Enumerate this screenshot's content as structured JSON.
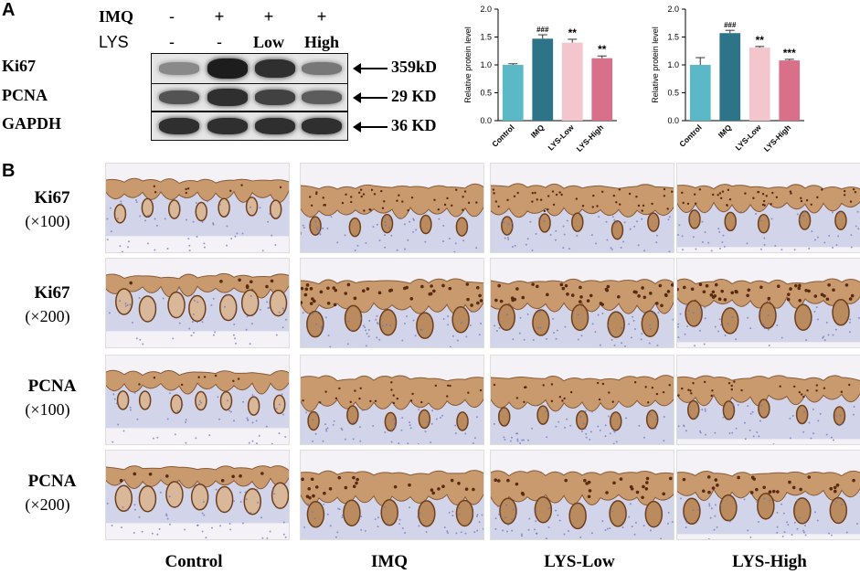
{
  "panel_a": {
    "letter": "A",
    "wb_header": {
      "rows": [
        {
          "label": "IMQ",
          "cols": [
            "-",
            "+",
            "+",
            "+"
          ]
        },
        {
          "label": "LYS",
          "cols": [
            "-",
            "-",
            "Low",
            "High"
          ]
        }
      ]
    },
    "blots": [
      {
        "label": "Ki67",
        "mw": "359kD",
        "intensity": [
          0.35,
          0.95,
          0.85,
          0.45
        ]
      },
      {
        "label": "PCNA",
        "mw": "29 KD",
        "intensity": [
          0.65,
          0.85,
          0.75,
          0.6
        ]
      },
      {
        "label": "GAPDH",
        "mw": "36 KD",
        "intensity": [
          0.85,
          0.85,
          0.85,
          0.85
        ]
      }
    ]
  },
  "chart_data": [
    {
      "type": "bar",
      "ylabel": "Relative protein level",
      "categories": [
        "Control",
        "IMQ",
        "LYS-Low",
        "LYS-High"
      ],
      "values": [
        1.0,
        1.47,
        1.4,
        1.12
      ],
      "errors": [
        0.02,
        0.07,
        0.06,
        0.04
      ],
      "annotations": [
        "",
        "###",
        "**",
        "**"
      ],
      "ylim": [
        0,
        2.0
      ],
      "yticks": [
        "0.0",
        "0.5",
        "1.0",
        "1.5",
        "2.0"
      ],
      "colors": [
        "#5bb8c6",
        "#2e7489",
        "#f3c6cd",
        "#d9708a"
      ]
    },
    {
      "type": "bar",
      "ylabel": "Relative protein level",
      "categories": [
        "Control",
        "IMQ",
        "LYS-Low",
        "LYS-High"
      ],
      "values": [
        1.0,
        1.57,
        1.31,
        1.08
      ],
      "errors": [
        0.13,
        0.05,
        0.02,
        0.02
      ],
      "annotations": [
        "",
        "###",
        "**",
        "***"
      ],
      "ylim": [
        0,
        2.0
      ],
      "yticks": [
        "0.0",
        "0.5",
        "1.0",
        "1.5",
        "2.0"
      ],
      "colors": [
        "#5bb8c6",
        "#2e7489",
        "#f3c6cd",
        "#d9708a"
      ]
    }
  ],
  "panel_b": {
    "letter": "B",
    "rows": [
      {
        "title": "Ki67",
        "mag": "(×100)"
      },
      {
        "title": "Ki67",
        "mag": "(×200)"
      },
      {
        "title": "PCNA",
        "mag": "(×100)"
      },
      {
        "title": "PCNA",
        "mag": "(×200)"
      }
    ],
    "columns": [
      "Control",
      "IMQ",
      "LYS-Low",
      "LYS-High"
    ]
  }
}
